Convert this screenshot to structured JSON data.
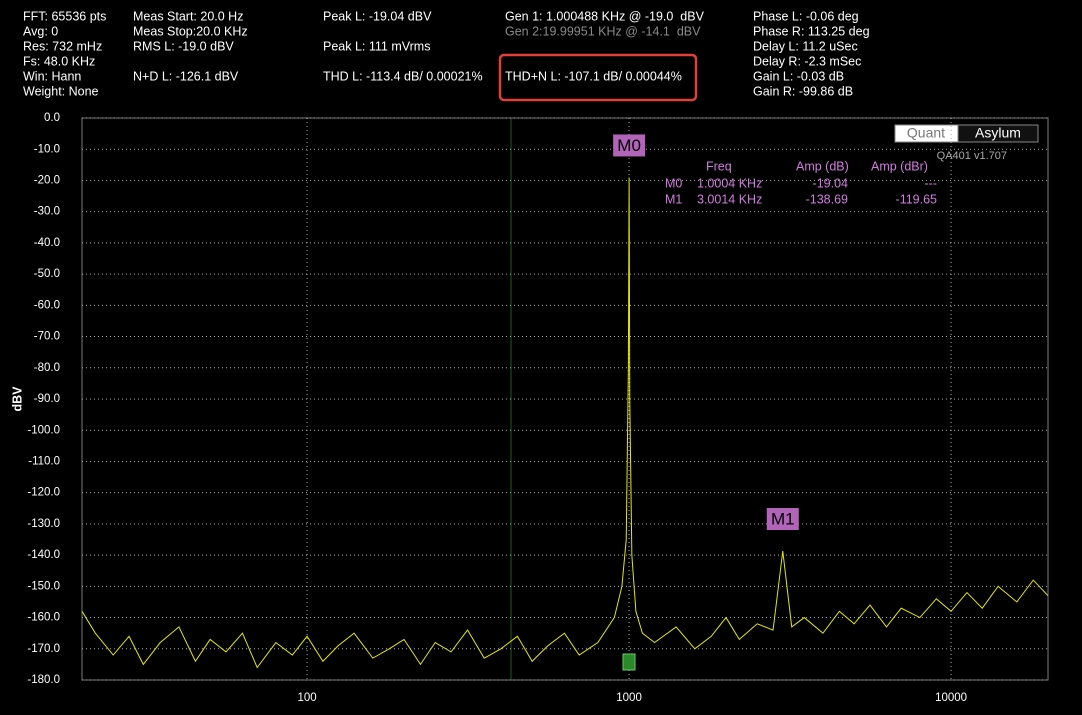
{
  "header": {
    "col0": [
      "FFT: 65536 pts",
      "Avg: 0",
      "Res: 732 mHz",
      "Fs: 48.0 KHz",
      "Win: Hann",
      "Weight: None"
    ],
    "col1": [
      "Meas Start: 20.0 Hz",
      "Meas Stop:20.0 KHz",
      "RMS L: -19.0 dBV",
      "N+D L: -126.1 dBV"
    ],
    "col2": [
      "Peak L: -19.04 dBV",
      "Peak L: 111 mVrms",
      "THD L: -113.4 dB/ 0.00021%"
    ],
    "col3": [
      "Gen 1: 1.000488 KHz @ -19.0  dBV",
      "Gen 2:19.99951 KHz @ -14.1  dBV",
      "THD+N L: -107.1 dB/ 0.00044%"
    ],
    "col4": [
      "Phase L: -0.06 deg",
      "Phase R: 113.25 deg",
      "Delay L: 11.2 uSec",
      "Delay R: -2.3 mSec",
      "Gain L: -0.03 dB",
      "Gain R: -99.86 dB"
    ]
  },
  "logo": [
    "Quant",
    "Asylum"
  ],
  "version": "QA401 v1.707",
  "chart_data": {
    "type": "line",
    "y_label": "dBV",
    "x_log": true,
    "grid": true,
    "xlim": [
      20,
      20000
    ],
    "ylim": [
      -180,
      0
    ],
    "xticks": [
      100,
      1000,
      10000
    ],
    "yticks": [
      {
        "value": 0,
        "label": "0.0"
      },
      {
        "value": -10,
        "label": "-10.0"
      },
      {
        "value": -20,
        "label": "-20.0"
      },
      {
        "value": -30,
        "label": "-30.0"
      },
      {
        "value": -40,
        "label": "-40.0"
      },
      {
        "value": -50,
        "label": "-50.0"
      },
      {
        "value": -60,
        "label": "-60.0"
      },
      {
        "value": -70,
        "label": "-70.0"
      },
      {
        "value": -80,
        "label": "-80.0"
      },
      {
        "value": -90,
        "label": "-90.0"
      },
      {
        "value": -100,
        "label": "-100.0"
      },
      {
        "value": -110,
        "label": "-110.0"
      },
      {
        "value": -120,
        "label": "-120.0"
      },
      {
        "value": -130,
        "label": "-130.0"
      },
      {
        "value": -140,
        "label": "-140.0"
      },
      {
        "value": -150,
        "label": "-150.0"
      },
      {
        "value": -160,
        "label": "-160.0"
      },
      {
        "value": -170,
        "label": "-170.0"
      },
      {
        "value": -180,
        "label": "-180.0"
      }
    ],
    "x": [
      20,
      22,
      25,
      28,
      31,
      35,
      40,
      45,
      50,
      56,
      63,
      70,
      80,
      90,
      100,
      112,
      125,
      140,
      160,
      180,
      200,
      225,
      250,
      280,
      315,
      355,
      400,
      450,
      500,
      560,
      630,
      700,
      800,
      900,
      950,
      980,
      995,
      1000.4,
      1005,
      1020,
      1050,
      1100,
      1200,
      1400,
      1600,
      1800,
      2000,
      2200,
      2500,
      2800,
      3001.4,
      3200,
      3500,
      4000,
      4500,
      5000,
      5600,
      6300,
      7000,
      8000,
      9000,
      10000,
      11200,
      12500,
      14000,
      16000,
      18000,
      20000
    ],
    "series": [
      {
        "color": "#e6e600",
        "values": [
          -158,
          -165,
          -172,
          -166,
          -175,
          -168,
          -163,
          -174,
          -167,
          -171,
          -165,
          -176,
          -168,
          -172,
          -166,
          -174,
          -169,
          -165,
          -173,
          -170,
          -167,
          -175,
          -168,
          -171,
          -164,
          -173,
          -170,
          -166,
          -174,
          -169,
          -165,
          -172,
          -168,
          -160,
          -150,
          -135,
          -80,
          -19.04,
          -90,
          -140,
          -158,
          -165,
          -168,
          -163,
          -170,
          -166,
          -160,
          -167,
          -162,
          -164,
          -138.69,
          -163,
          -160,
          -165,
          -158,
          -162,
          -156,
          -163,
          -157,
          -160,
          -154,
          -158,
          -152,
          -157,
          -150,
          -155,
          -148,
          -153
        ]
      }
    ],
    "marker_table": {
      "columns": [
        "Freq",
        "Amp (dB)",
        "Amp (dBr)"
      ],
      "rows": [
        {
          "marker": "M0",
          "freq": "1.0004 KHz",
          "amp": -19.04,
          "ampr": "---"
        },
        {
          "marker": "M1",
          "freq": "3.0014 KHz",
          "amp": -138.69,
          "ampr": -119.65
        }
      ]
    }
  }
}
